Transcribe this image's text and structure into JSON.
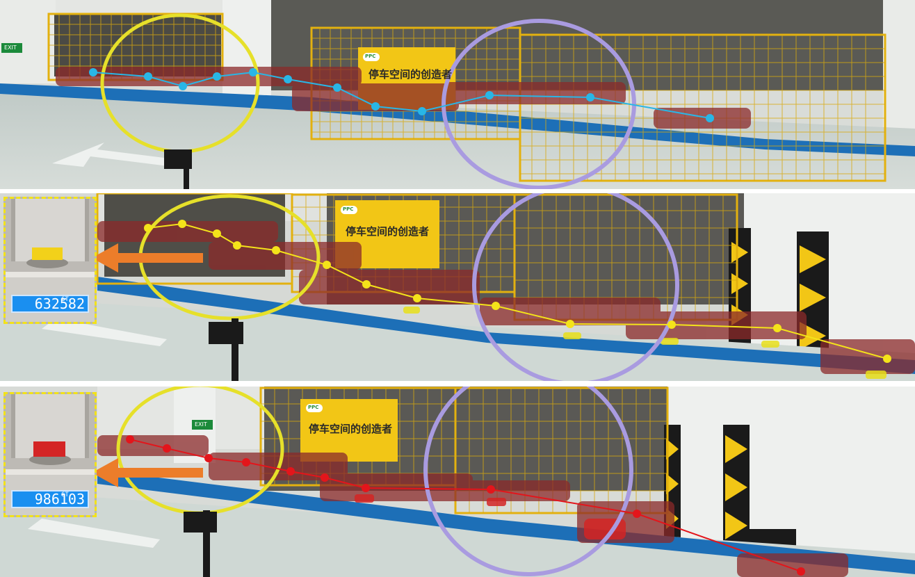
{
  "panels": [
    {
      "trajectory_color": "#29b6e6",
      "sign_text": "停车空间的创造者",
      "sign_logo": "PPC",
      "exit_sign": "EXIT"
    },
    {
      "trajectory_color": "#f4e31a",
      "sign_text": "停车空间的创造者",
      "sign_logo": "PPC",
      "scale_reading": "632582",
      "scale_unit": "6T",
      "payload_color": "#f2d11a"
    },
    {
      "trajectory_color": "#e3151b",
      "sign_text": "停车空间的创造者",
      "sign_logo": "PPC",
      "exit_sign": "EXIT",
      "scale_reading": "986103",
      "scale_unit": "6T",
      "payload_color": "#d42525"
    }
  ],
  "colors": {
    "yellow_hoop": "#e6e02a",
    "purple_hoop": "#a99be0",
    "fence": "#e3b10f",
    "arrow": "#ec7d2a",
    "floor": "#c9d3cf",
    "floor_stripe": "#1d6fb7"
  }
}
